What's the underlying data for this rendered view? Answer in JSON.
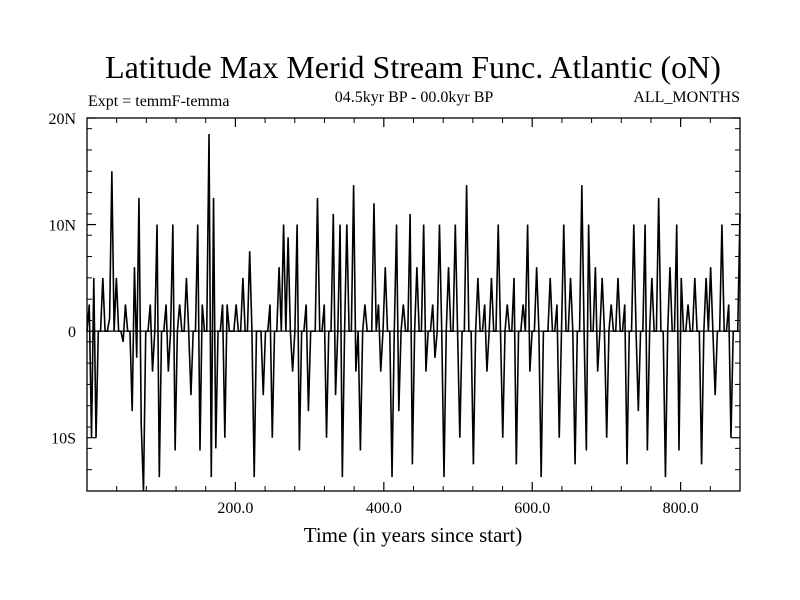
{
  "chart_data": {
    "type": "line",
    "title": "Latitude Max Merid Stream Func. Atlantic (oN)",
    "subtitle_left": "Expt = temmF-temma",
    "subtitle_center": "04.5kyr BP - 00.0kyr BP",
    "subtitle_right": "ALL_MONTHS",
    "xlabel": "Time (in years since start)",
    "ylabel": "",
    "xlim": [
      0,
      880
    ],
    "ylim": [
      -15,
      20
    ],
    "x_ticks": [
      200,
      400,
      600,
      800
    ],
    "x_tick_labels": [
      "200.0",
      "400.0",
      "600.0",
      "800.0"
    ],
    "y_ticks": [
      20,
      10,
      0,
      -10
    ],
    "y_tick_labels": [
      "20N",
      "10N",
      "0",
      "10S"
    ],
    "grid": false,
    "zero_line": true,
    "series": [
      {
        "values": [
          0,
          2.5,
          -10,
          5,
          -10,
          0,
          0,
          5,
          0,
          0,
          1.2,
          15,
          0,
          5,
          0,
          0,
          -1,
          2.5,
          0,
          0,
          -7.5,
          6,
          -2.5,
          12.5,
          -8.8,
          -15,
          0,
          0,
          2.5,
          -3.8,
          0,
          10,
          -13.7,
          0,
          0,
          2.5,
          -3.8,
          0,
          10,
          -11.2,
          0,
          2.5,
          0,
          0,
          5,
          0,
          -6,
          0,
          0,
          10,
          -11.2,
          2.5,
          0,
          0,
          18.5,
          -13.7,
          12.5,
          -11,
          0,
          0,
          2.5,
          -10,
          2.5,
          0,
          0,
          0,
          2.5,
          0,
          0,
          5,
          0,
          0,
          7.5,
          0,
          -13.7,
          0,
          0,
          0,
          -6,
          0,
          0,
          2.5,
          -10,
          0,
          0,
          6,
          0,
          10,
          0,
          8.8,
          0,
          -3.8,
          0,
          10,
          -11.2,
          0,
          0,
          2.5,
          -7.5,
          0,
          0,
          0,
          12.5,
          0,
          0,
          2.5,
          -10,
          0,
          0,
          11,
          -6,
          0,
          10,
          -13.7,
          0,
          10,
          0,
          0,
          13.7,
          -3.8,
          0,
          -11.2,
          0,
          2.5,
          0,
          0,
          0,
          12,
          0,
          2.5,
          -3.8,
          0,
          6,
          0,
          0,
          -13.7,
          0,
          10,
          -7.5,
          0,
          2.5,
          0,
          0,
          11,
          -12.5,
          0,
          6,
          0,
          0,
          10,
          -3.8,
          0,
          0,
          2.5,
          -2.5,
          0,
          10,
          0,
          -13.7,
          0,
          6,
          0,
          0,
          10,
          0,
          -10,
          0,
          0,
          13.7,
          0,
          0,
          -12.5,
          0,
          5,
          0,
          0,
          2.5,
          -3.8,
          0,
          5,
          0,
          0,
          10,
          0,
          -10,
          0,
          2.5,
          0,
          0,
          5,
          -12.5,
          0,
          0,
          2.5,
          0,
          10,
          -3.8,
          0,
          0,
          6,
          0,
          -13.7,
          0,
          0,
          0,
          5,
          0,
          0,
          2.5,
          -10,
          0,
          10,
          0,
          0,
          5,
          0,
          -12.5,
          0,
          0,
          13.7,
          0,
          -11.2,
          10,
          0,
          0,
          6,
          -3.8,
          0,
          5,
          0,
          -10,
          0,
          2.5,
          0,
          0,
          5,
          0,
          0,
          2.5,
          -12.5,
          0,
          0,
          10,
          0,
          -7.5,
          0,
          0,
          10,
          -11.2,
          0,
          5,
          0,
          0,
          12.5,
          0,
          0,
          -13.7,
          0,
          6,
          0,
          0,
          10,
          -11.2,
          5,
          0,
          0,
          2.5,
          0,
          0,
          5,
          0,
          0,
          -12.5,
          0,
          5,
          0,
          6,
          0,
          -6,
          0,
          0,
          10,
          0,
          0,
          2.5,
          -10,
          0,
          0,
          0,
          11
        ]
      }
    ]
  }
}
